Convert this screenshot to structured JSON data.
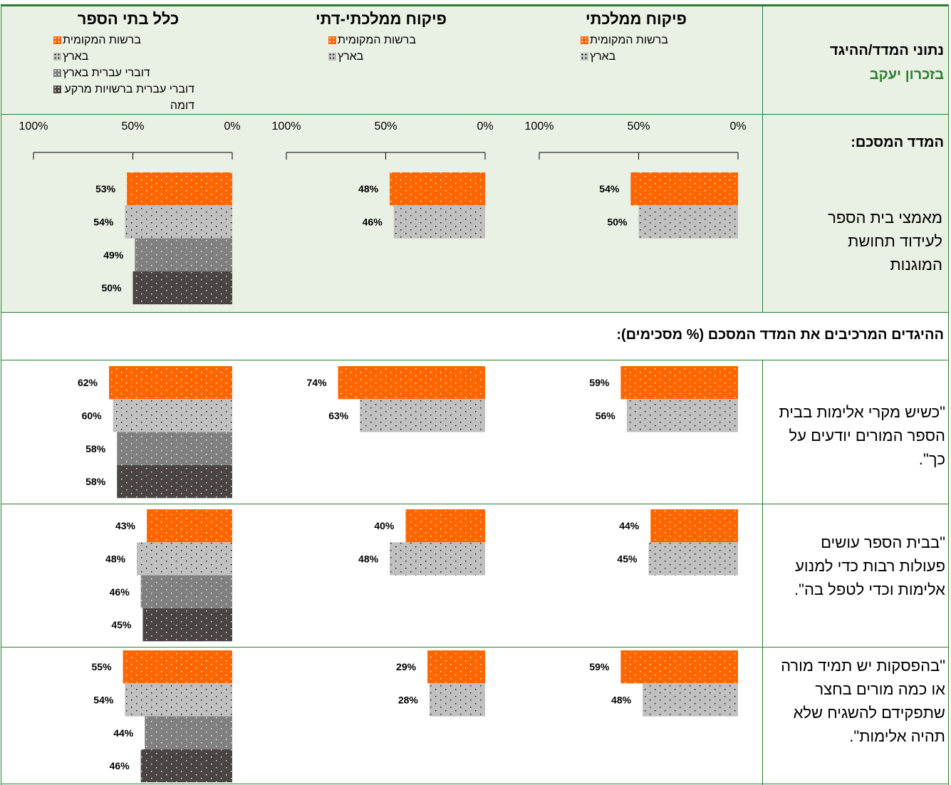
{
  "header": {
    "title": "נתוני המדד/ההיגד",
    "subtitle": "בזכרון יעקב"
  },
  "columns": [
    {
      "title": "כלל בתי הספר",
      "series": [
        {
          "name": "ברשות המקומית",
          "color": "#ff6600"
        },
        {
          "name": "בארץ",
          "color": "#c0c0c0"
        },
        {
          "name": "דוברי עברית בארץ",
          "color": "#808080"
        },
        {
          "name": "דוברי עברית ברשויות מרקע דומה",
          "color": "#4a4542"
        }
      ]
    },
    {
      "title": "פיקוח ממלכתי-דתי",
      "series": [
        {
          "name": "ברשות המקומית",
          "color": "#ff6600"
        },
        {
          "name": "בארץ",
          "color": "#c0c0c0"
        }
      ]
    },
    {
      "title": "פיקוח ממלכתי",
      "series": [
        {
          "name": "ברשות המקומית",
          "color": "#ff6600"
        },
        {
          "name": "בארץ",
          "color": "#c0c0c0"
        }
      ]
    }
  ],
  "axis": {
    "ticks": [
      {
        "value": 100,
        "label": "100%"
      },
      {
        "value": 50,
        "label": "50%"
      },
      {
        "value": 0,
        "label": "0%"
      }
    ]
  },
  "index": {
    "title": "המדד המסכם:",
    "label": "מאמצי בית הספר לעידוד תחושת המוגנות",
    "values": [
      [
        53,
        54,
        49,
        50
      ],
      [
        48,
        46
      ],
      [
        54,
        50
      ]
    ],
    "value_labels": [
      [
        "53%",
        "54%",
        "49%",
        "50%"
      ],
      [
        "48%",
        "46%"
      ],
      [
        "54%",
        "50%"
      ]
    ]
  },
  "section_title": "ההיגדים המרכיבים את המדד המסכם (% מסכימים):",
  "items": [
    {
      "label": "\"כשיש מקרי אלימות בבית הספר המורים יודעים על כך\".",
      "values": [
        [
          62,
          60,
          58,
          58
        ],
        [
          74,
          63
        ],
        [
          59,
          56
        ]
      ],
      "value_labels": [
        [
          "62%",
          "60%",
          "58%",
          "58%"
        ],
        [
          "74%",
          "63%"
        ],
        [
          "59%",
          "56%"
        ]
      ]
    },
    {
      "label": "\"בבית הספר עושים פעולות רבות כדי למנוע אלימות וכדי לטפל בה\".",
      "values": [
        [
          43,
          48,
          46,
          45
        ],
        [
          40,
          48
        ],
        [
          44,
          45
        ]
      ],
      "value_labels": [
        [
          "43%",
          "48%",
          "46%",
          "45%"
        ],
        [
          "40%",
          "48%"
        ],
        [
          "44%",
          "45%"
        ]
      ]
    },
    {
      "label": "\"בהפסקות יש תמיד מורה או כמה מורים בחצר שתפקידם להשגיח שלא תהיה אלימות\".",
      "values": [
        [
          55,
          54,
          44,
          46
        ],
        [
          29,
          28
        ],
        [
          59,
          48
        ]
      ],
      "value_labels": [
        [
          "55%",
          "54%",
          "44%",
          "46%"
        ],
        [
          "29%",
          "28%"
        ],
        [
          "59%",
          "48%"
        ]
      ]
    }
  ]
}
